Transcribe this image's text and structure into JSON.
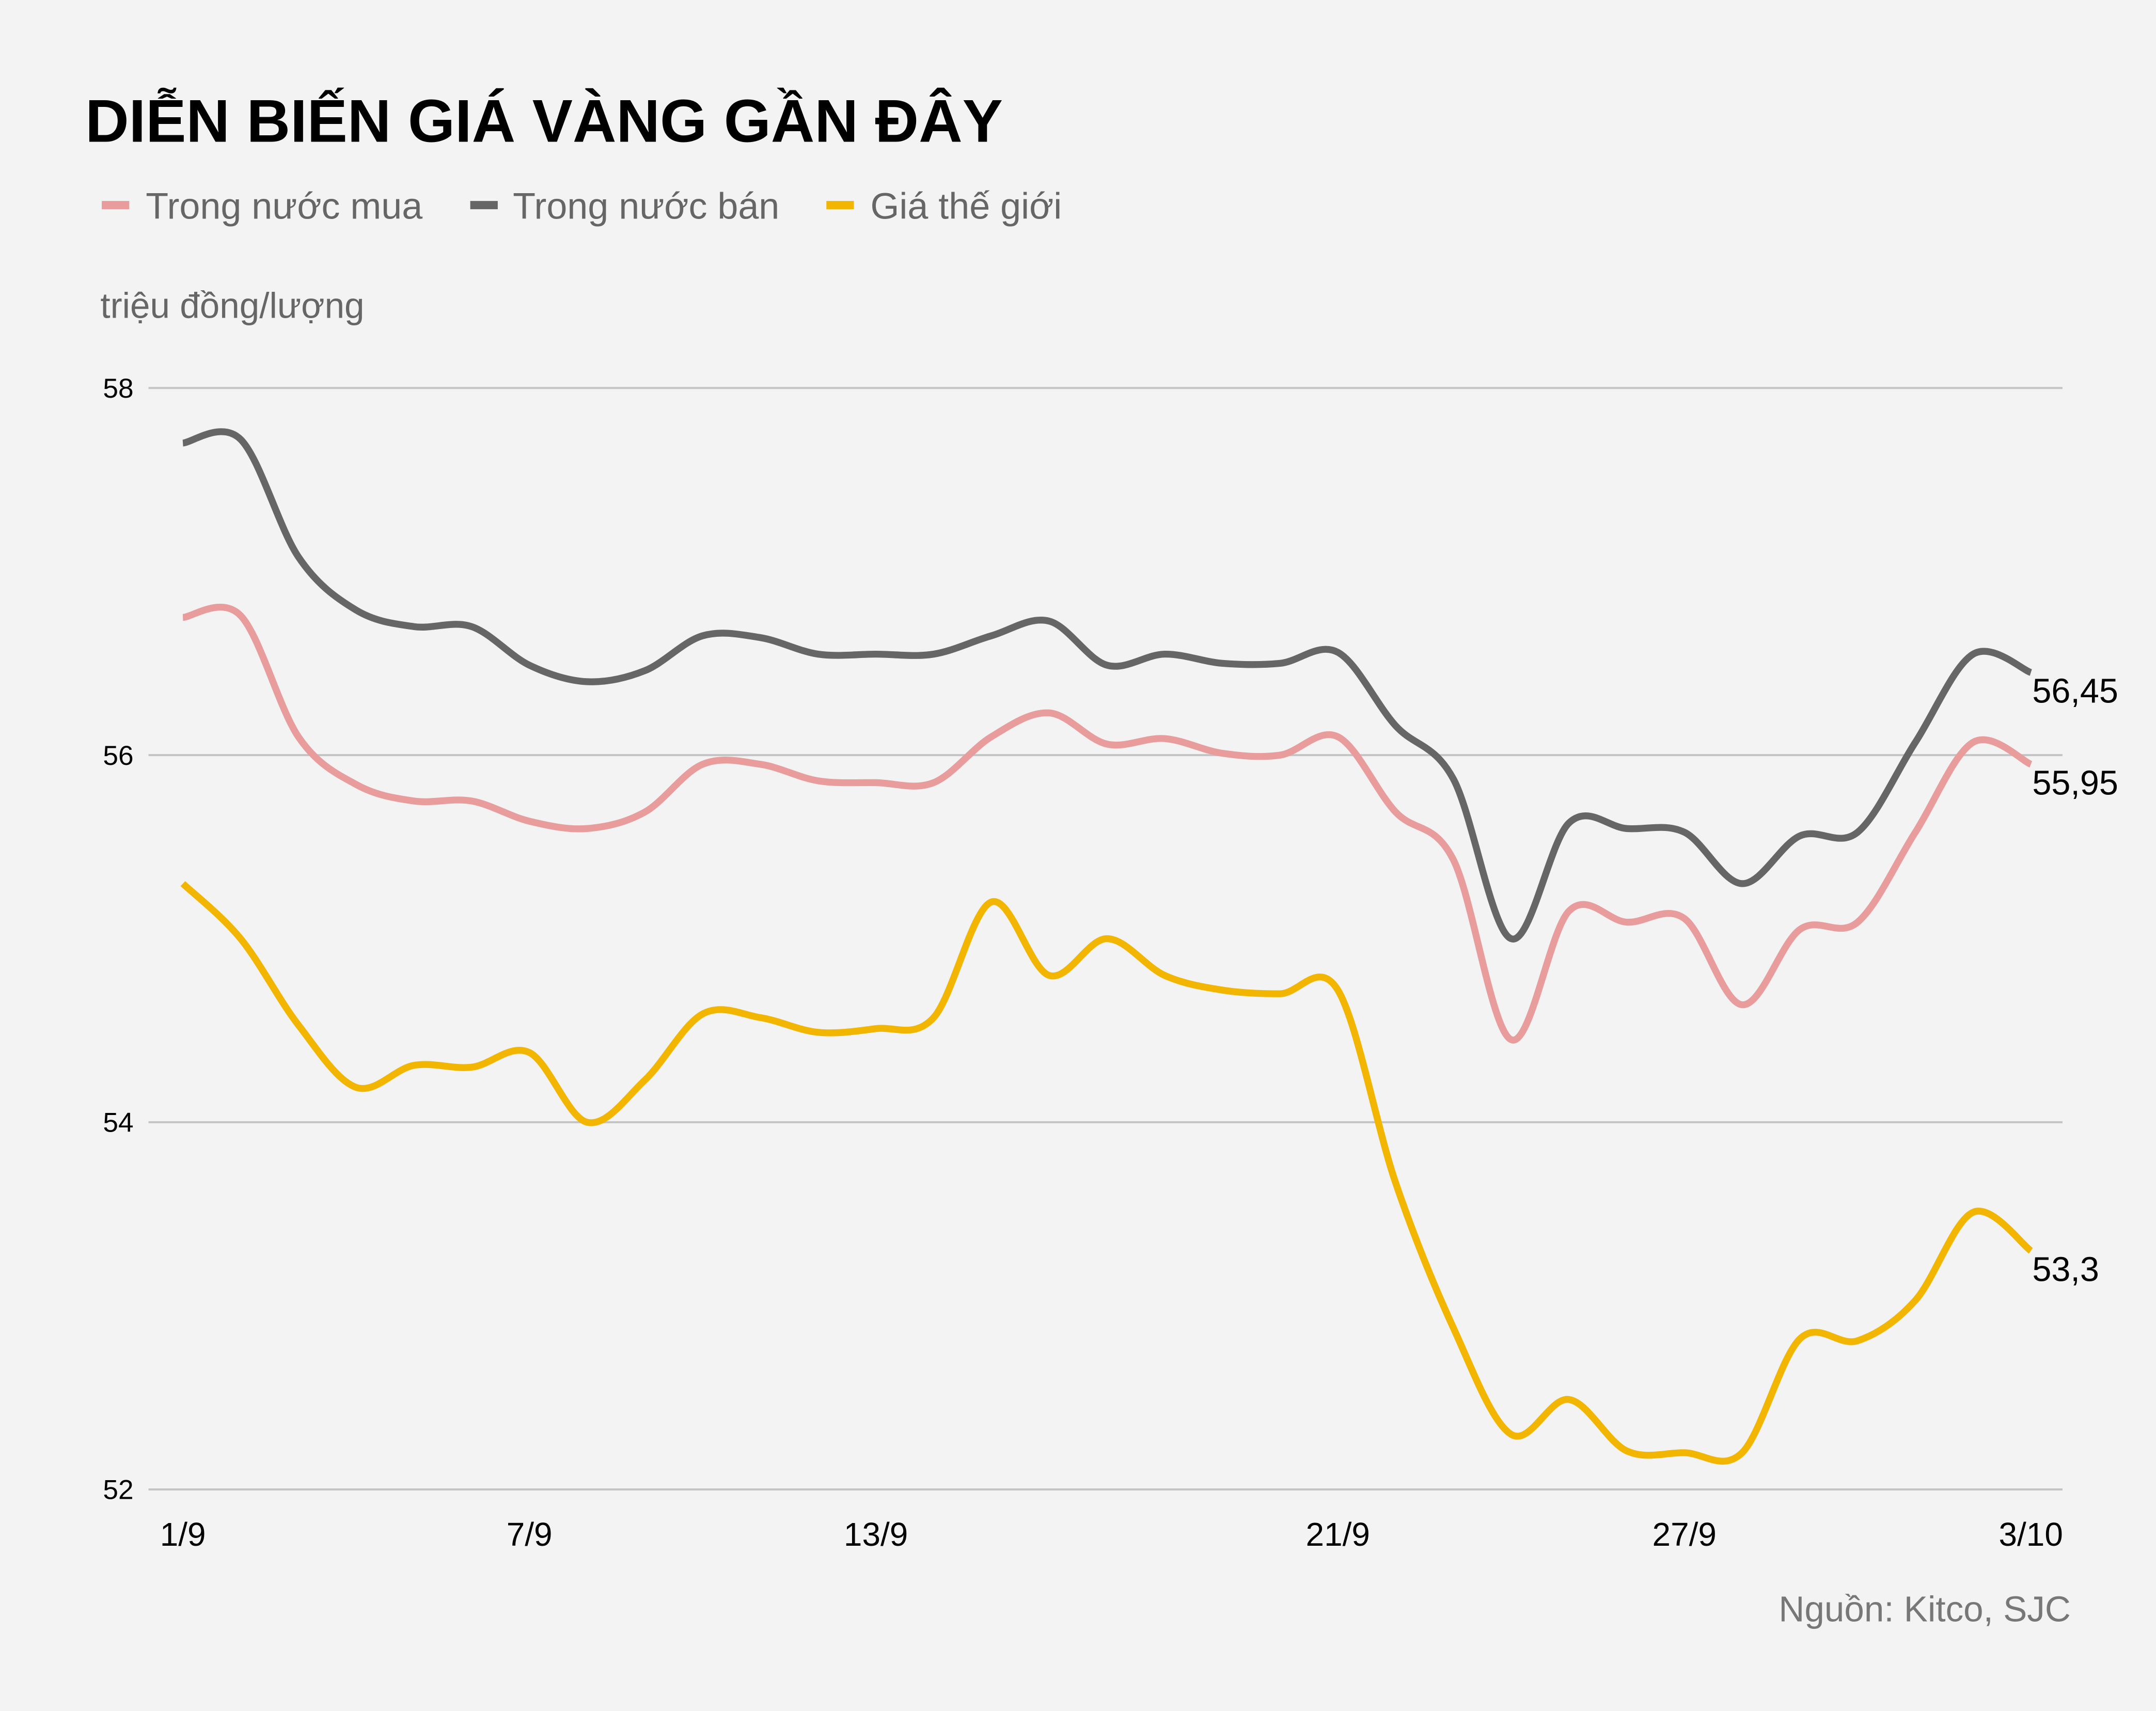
{
  "chart_data": {
    "type": "line",
    "title": "DIỄN BIẾN GIÁ VÀNG GẦN ĐÂY",
    "ylabel": "triệu đồng/lượng",
    "xlabel": "",
    "source": "Nguồn: Kitco, SJC",
    "ylim": [
      52,
      58
    ],
    "yticks": [
      "52",
      "54",
      "56",
      "58"
    ],
    "ytick_values": [
      52,
      54,
      56,
      58
    ],
    "grid": true,
    "legend_position": "top-left",
    "x": [
      "1/9",
      "2/9",
      "3/9",
      "4/9",
      "5/9",
      "6/9",
      "7/9",
      "8/9",
      "9/9",
      "10/9",
      "11/9",
      "12/9",
      "13/9",
      "14/9",
      "15/9",
      "16/9",
      "17/9",
      "18/9",
      "19/9",
      "20/9",
      "21/9",
      "22/9",
      "23/9",
      "24/9",
      "25/9",
      "26/9",
      "27/9",
      "28/9",
      "29/9",
      "30/9",
      "1/10",
      "2/10",
      "3/10"
    ],
    "xtick_labels": [
      "1/9",
      "7/9",
      "13/9",
      "21/9",
      "27/9",
      "3/10"
    ],
    "series": [
      {
        "name": "Trong nước mua",
        "color": "#e89c9c",
        "values": [
          56.75,
          56.76,
          56.1,
          55.84,
          55.75,
          55.75,
          55.64,
          55.6,
          55.69,
          55.95,
          55.95,
          55.86,
          55.85,
          55.85,
          56.1,
          56.23,
          56.06,
          56.09,
          56.01,
          56.0,
          56.1,
          55.69,
          55.43,
          54.45,
          55.15,
          55.09,
          55.11,
          54.64,
          55.05,
          55.09,
          55.58,
          56.07,
          55.95
        ],
        "end_label": "55,95"
      },
      {
        "name": "Trong nước bán",
        "color": "#666666",
        "values": [
          57.7,
          57.72,
          57.08,
          56.79,
          56.7,
          56.7,
          56.49,
          56.4,
          56.46,
          56.65,
          56.64,
          56.55,
          56.55,
          56.55,
          56.65,
          56.73,
          56.49,
          56.55,
          56.5,
          56.5,
          56.56,
          56.16,
          55.87,
          55.0,
          55.63,
          55.6,
          55.58,
          55.3,
          55.56,
          55.58,
          56.07,
          56.55,
          56.45
        ],
        "end_label": "56,45"
      },
      {
        "name": "Giá thế giới",
        "color": "#f2b600",
        "values": [
          55.3,
          55.0,
          54.53,
          54.19,
          54.31,
          54.3,
          54.38,
          54.0,
          54.23,
          54.59,
          54.57,
          54.49,
          54.51,
          54.57,
          55.2,
          54.8,
          55.0,
          54.8,
          54.72,
          54.7,
          54.72,
          53.67,
          52.88,
          52.3,
          52.49,
          52.21,
          52.2,
          52.2,
          52.82,
          52.81,
          53.03,
          53.51,
          53.3
        ],
        "end_label": "53,3"
      }
    ]
  }
}
